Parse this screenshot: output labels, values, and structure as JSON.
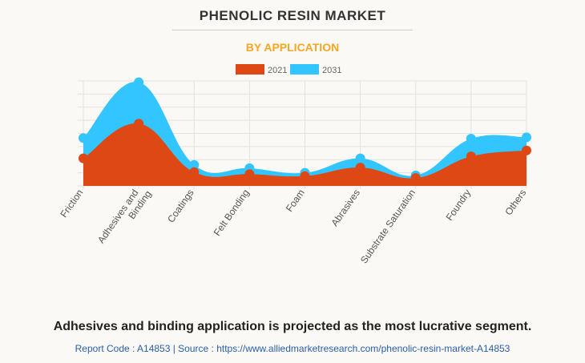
{
  "chart_data": {
    "type": "area",
    "title": "PHENOLIC RESIN MARKET",
    "subtitle": "BY APPLICATION",
    "categories": [
      "Friction",
      "Adhesives and Binding",
      "Coatings",
      "Felt Bonding",
      "Foam",
      "Abrasives",
      "Substrate Saturation",
      "Foundry",
      "Others"
    ],
    "series": [
      {
        "name": "2021",
        "color": "#dd4814",
        "values": [
          2.1,
          4.75,
          1.05,
          0.9,
          0.75,
          1.4,
          0.6,
          2.25,
          2.7
        ]
      },
      {
        "name": "2031",
        "color": "#33c5ff",
        "values": [
          3.65,
          7.9,
          1.6,
          1.35,
          1.0,
          2.1,
          0.8,
          3.6,
          3.7
        ]
      }
    ],
    "ylim": [
      0,
      8
    ],
    "grid": true,
    "legend": "top-center"
  },
  "caption": "Adhesives and binding application is projected as the most lucrative segment.",
  "source": "Report Code : A14853  |  Source : https://www.alliedmarketresearch.com/phenolic-resin-market-A14853"
}
